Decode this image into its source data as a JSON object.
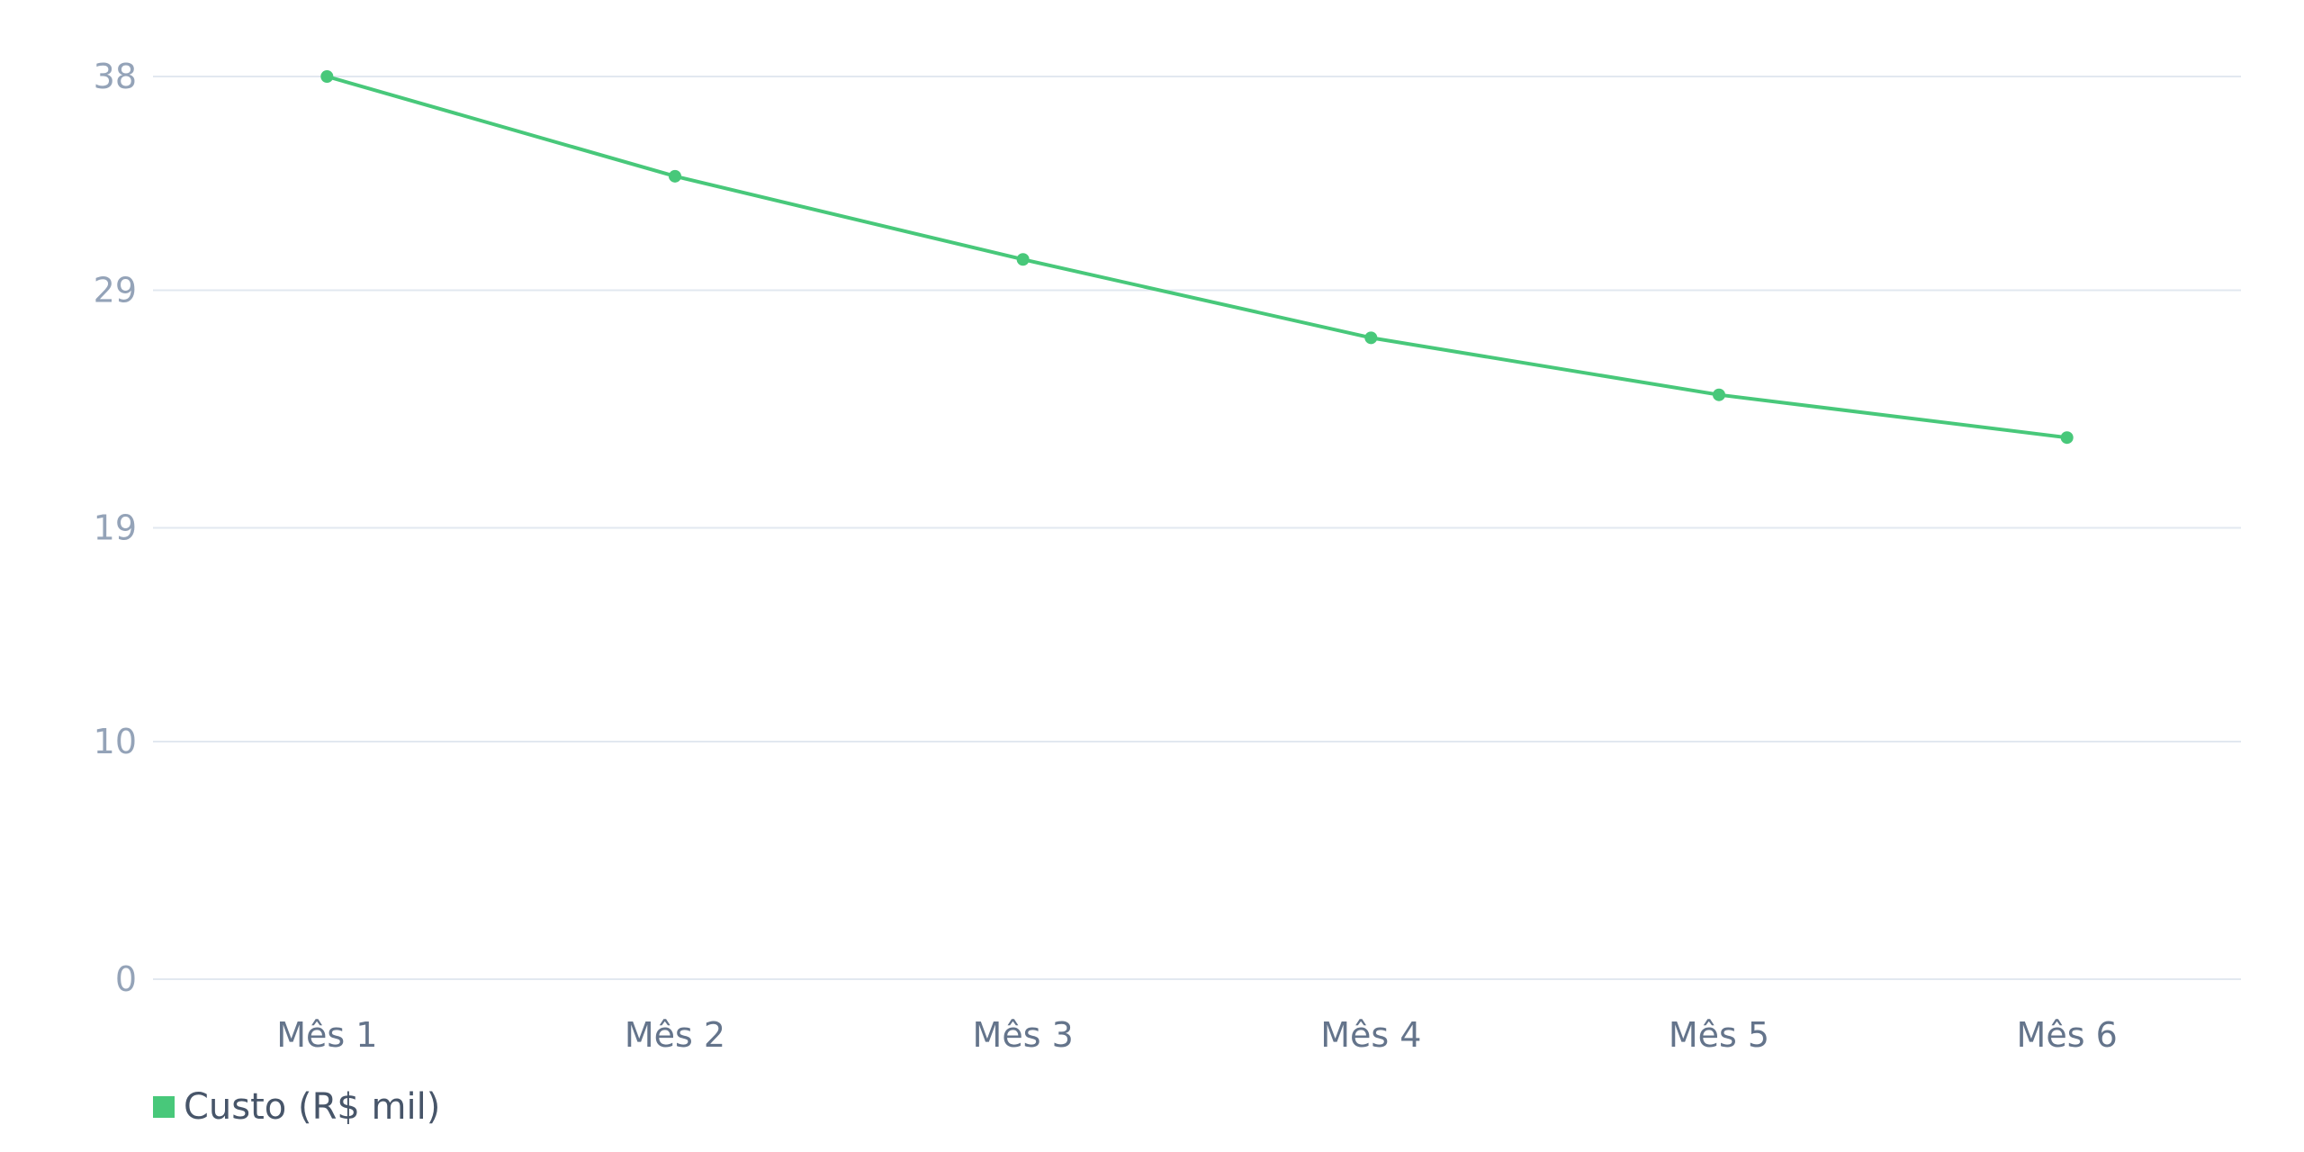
{
  "chart_data": {
    "type": "line",
    "categories": [
      "Mês 1",
      "Mês 2",
      "Mês 3",
      "Mês 4",
      "Mês 5",
      "Mês 6"
    ],
    "series": [
      {
        "name": "Custo (R$ mil)",
        "values": [
          38,
          33.8,
          30.3,
          27,
          24.6,
          22.8
        ],
        "color": "#48c87a"
      }
    ],
    "yticks": [
      0,
      10,
      19,
      29,
      38
    ],
    "ylim": [
      0,
      38
    ],
    "grid": true,
    "legend_position": "bottom-left",
    "title": "",
    "xlabel": "",
    "ylabel": ""
  }
}
